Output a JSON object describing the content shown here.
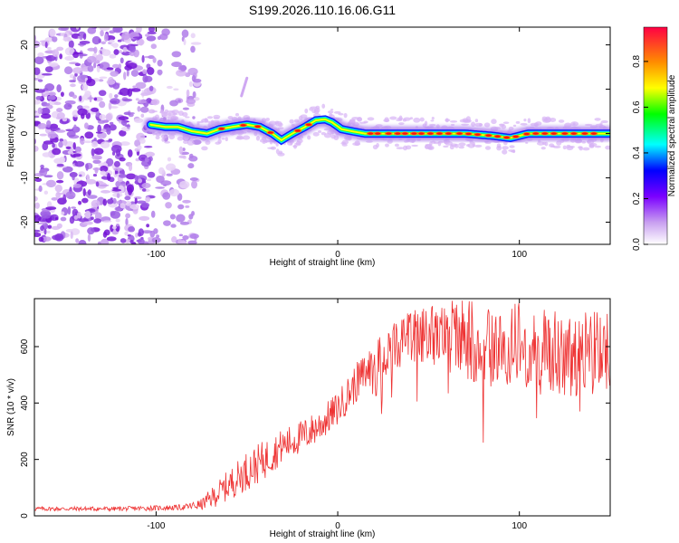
{
  "figure_title": "S199.2026.110.16.06.G11",
  "chart_data": [
    {
      "type": "heatmap",
      "title": "S199.2026.110.16.06.G11",
      "xlabel": "Height of straight line (km)",
      "ylabel": "Frequency (Hz)",
      "xlim": [
        -167,
        150
      ],
      "ylim": [
        -25,
        24
      ],
      "xticks": [
        -100,
        0,
        100
      ],
      "yticks": [
        -20,
        -10,
        0,
        10,
        20
      ],
      "colorbar": {
        "label": "Normalized spectral amplitude",
        "range": [
          0,
          0.95
        ],
        "ticks": [
          0,
          0.2,
          0.4,
          0.6,
          0.8
        ],
        "ticks_text": [
          "0.0",
          "0.2",
          "0.4",
          "0.6",
          "0.8"
        ],
        "colors": [
          "#ffffff",
          "#e6b8f5",
          "#8a2be2",
          "#0000ff",
          "#00ffff",
          "#00ff00",
          "#ffff00",
          "#ff8c00",
          "#ff0000"
        ]
      },
      "noise_region_x": [
        -167,
        -77
      ],
      "signal_x_start": -103,
      "signal_track": {
        "x": [
          -103,
          -95,
          -88,
          -80,
          -72,
          -65,
          -58,
          -50,
          -43,
          -36,
          -31,
          -25,
          -18,
          -12,
          -7,
          -3,
          2,
          8,
          15,
          25,
          40,
          55,
          70,
          85,
          95,
          105,
          120,
          135,
          150
        ],
        "freq": [
          2.0,
          1.5,
          1.5,
          0.5,
          0.0,
          1.0,
          1.5,
          2.0,
          1.5,
          0.0,
          -1.5,
          0.0,
          1.5,
          3.0,
          3.2,
          2.5,
          1.0,
          0.5,
          0.0,
          0.0,
          0.0,
          0.0,
          0.0,
          -0.5,
          -1.0,
          0.0,
          0.0,
          0.0,
          0.0
        ]
      },
      "hot_spots_x": [
        -64,
        -52,
        -44,
        -37,
        -22,
        -16,
        18,
        22,
        28,
        33,
        37,
        42,
        46,
        51,
        56,
        61,
        67,
        72,
        77,
        83,
        88,
        93,
        98,
        104,
        109,
        114,
        119,
        125,
        130,
        136,
        141
      ]
    },
    {
      "type": "line",
      "xlabel": "Height of straight line (km)",
      "ylabel": "SNR (10 * v/v)",
      "xlim": [
        -167,
        150
      ],
      "ylim": [
        0,
        770
      ],
      "xticks": [
        -100,
        0,
        100
      ],
      "yticks": [
        0,
        200,
        400,
        600
      ],
      "series": [
        {
          "name": "SNR",
          "color": "#ee3333",
          "envelope_x": [
            -167,
            -120,
            -85,
            -75,
            -68,
            -60,
            -50,
            -40,
            -30,
            -20,
            -10,
            0,
            10,
            20,
            30,
            40,
            50,
            60,
            70,
            80,
            90,
            100,
            110,
            120,
            130,
            140,
            150
          ],
          "envelope_mean": [
            25,
            25,
            30,
            40,
            70,
            110,
            160,
            200,
            250,
            280,
            320,
            380,
            470,
            540,
            600,
            630,
            640,
            630,
            620,
            600,
            590,
            600,
            580,
            570,
            560,
            570,
            560
          ],
          "envelope_spread": [
            8,
            8,
            10,
            20,
            40,
            55,
            70,
            70,
            60,
            60,
            60,
            60,
            70,
            80,
            90,
            100,
            110,
            120,
            130,
            140,
            140,
            140,
            140,
            140,
            140,
            140,
            140
          ]
        }
      ]
    }
  ]
}
